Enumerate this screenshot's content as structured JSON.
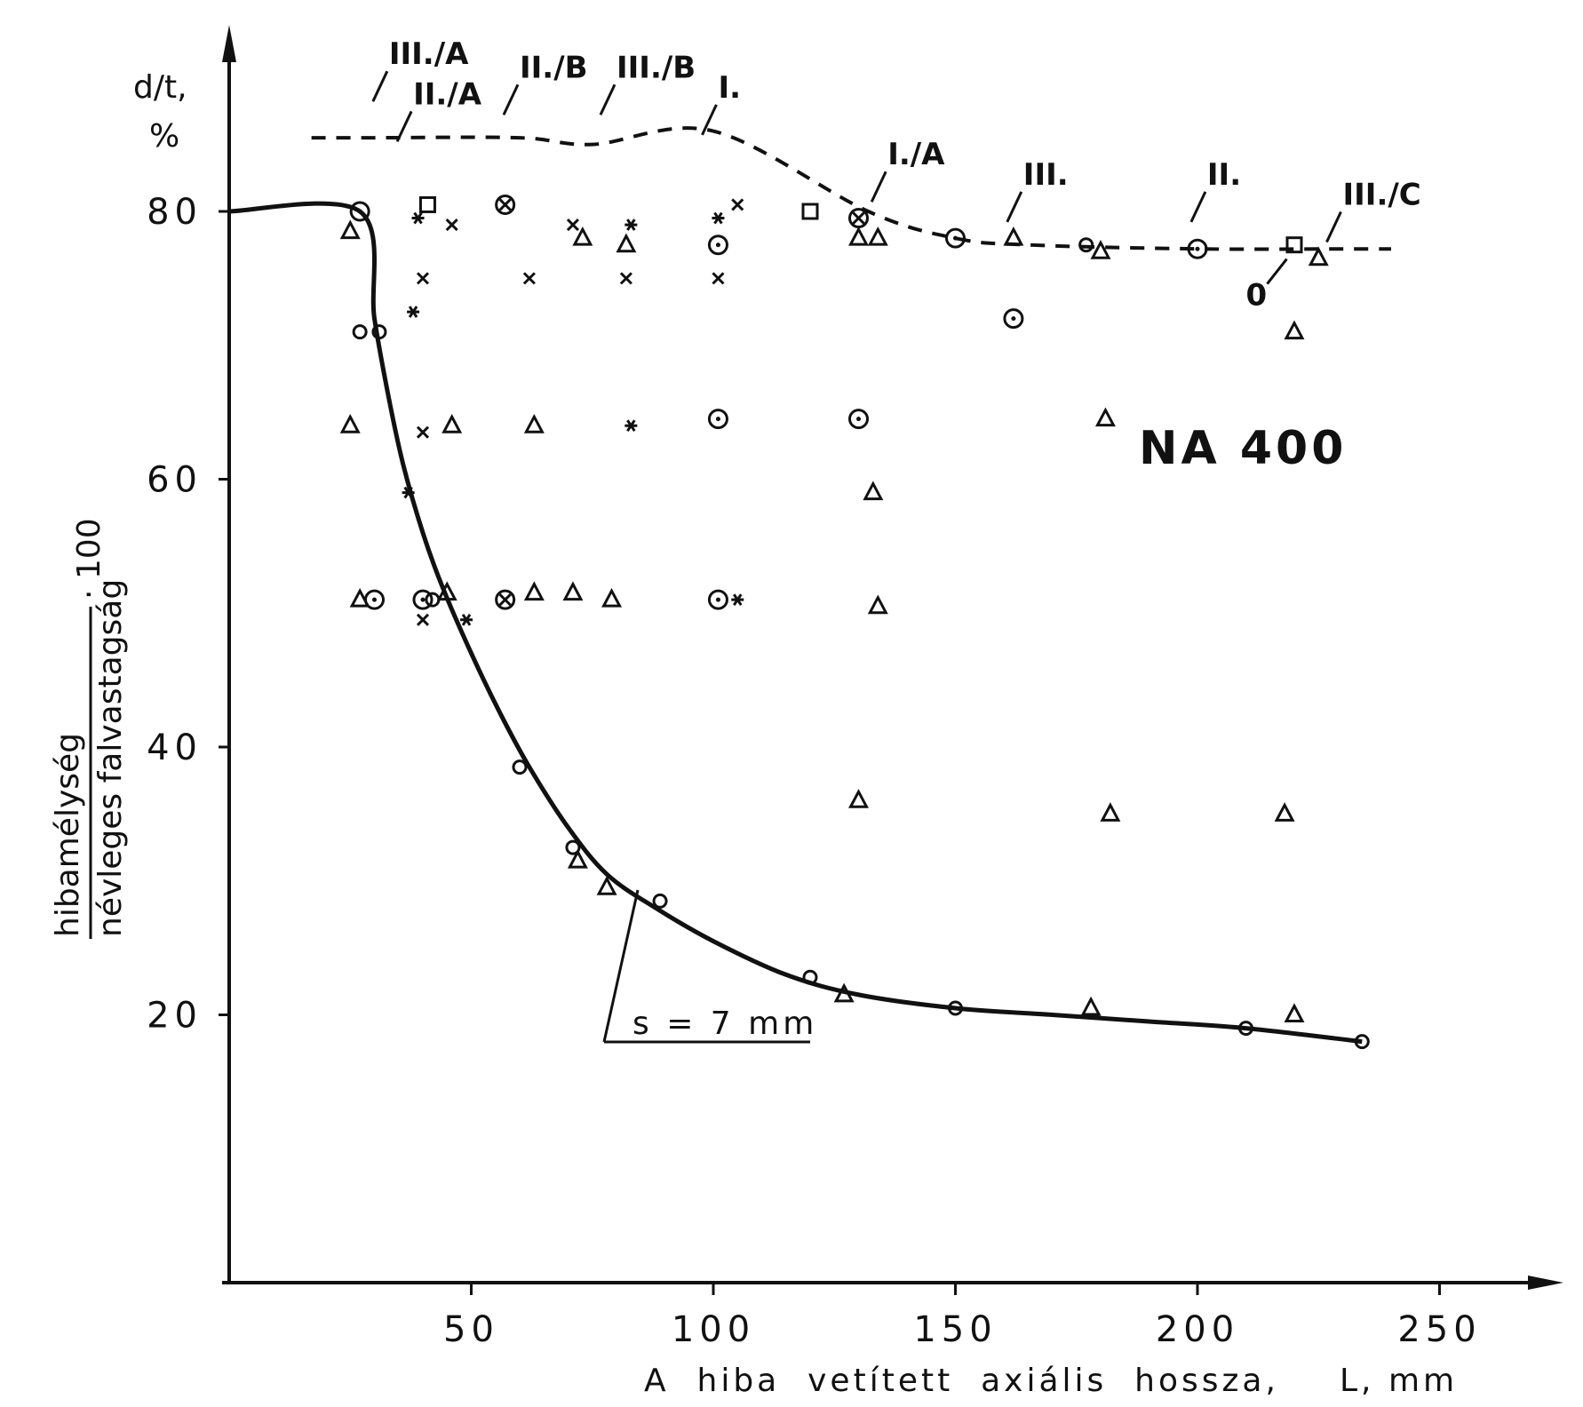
{
  "chart_data": {
    "type": "scatter",
    "annotation_label": "NA 400",
    "ylabel_top": "d/t,",
    "ylabel_unit": "%",
    "ylabel_numerator": "hibamélység",
    "ylabel_denominator": "névleges falvastagság",
    "ylabel_factor": "· 100",
    "xlabel_text": "A  hiba  vetített  axiális  hossza,",
    "xlabel_unit": "L, mm",
    "x_ticks": [
      50,
      100,
      150,
      200,
      250
    ],
    "y_ticks": [
      20,
      40,
      60,
      80
    ],
    "xlim": [
      0,
      270
    ],
    "ylim": [
      0,
      95
    ],
    "curve_label": "s = 7 mm",
    "series": [
      {
        "name": "s = 7 mm",
        "style": "solid",
        "x": [
          0,
          27,
          30,
          33,
          36,
          40,
          44,
          50,
          56,
          62,
          70,
          78,
          88,
          100,
          115,
          130,
          150,
          170,
          190,
          210,
          234
        ],
        "y": [
          80,
          80,
          72,
          66,
          61,
          56,
          52,
          47,
          42.5,
          38.5,
          34,
          30.5,
          28,
          25.5,
          23,
          21.5,
          20.5,
          20,
          19.5,
          19,
          18
        ]
      },
      {
        "style": "dashed",
        "x": [
          17,
          30,
          60,
          75,
          100,
          132,
          150,
          165,
          200,
          230,
          240
        ],
        "y": [
          85.5,
          85.5,
          85.5,
          85,
          86,
          80,
          78,
          77.5,
          77.2,
          77.2,
          77.2
        ]
      }
    ],
    "points": [
      {
        "m": "oc",
        "x": 27,
        "y": 80
      },
      {
        "m": "o",
        "x": 31,
        "y": 71
      },
      {
        "m": "o",
        "x": 60,
        "y": 38.5
      },
      {
        "m": "o",
        "x": 71,
        "y": 32.5
      },
      {
        "m": "o",
        "x": 89,
        "y": 28.5
      },
      {
        "m": "o",
        "x": 120,
        "y": 22.8
      },
      {
        "m": "o",
        "x": 150,
        "y": 20.5
      },
      {
        "m": "o",
        "x": 210,
        "y": 19
      },
      {
        "m": "o",
        "x": 234,
        "y": 18
      },
      {
        "m": "tri",
        "x": 25,
        "y": 78.5
      },
      {
        "m": "tri",
        "x": 25,
        "y": 64
      },
      {
        "m": "tri",
        "x": 27,
        "y": 51
      },
      {
        "m": "oc",
        "x": 30,
        "y": 51
      },
      {
        "m": "o",
        "x": 27,
        "y": 71
      },
      {
        "m": "sq",
        "x": 41,
        "y": 80.5
      },
      {
        "m": "ast",
        "x": 39,
        "y": 79.5
      },
      {
        "m": "x",
        "x": 46,
        "y": 79
      },
      {
        "m": "x",
        "x": 40,
        "y": 75
      },
      {
        "m": "ast",
        "x": 38,
        "y": 72.5
      },
      {
        "m": "x",
        "x": 40,
        "y": 63.5
      },
      {
        "m": "tri",
        "x": 46,
        "y": 64
      },
      {
        "m": "ast",
        "x": 37,
        "y": 59
      },
      {
        "m": "oc",
        "x": 40,
        "y": 51
      },
      {
        "m": "o",
        "x": 42,
        "y": 51
      },
      {
        "m": "tri",
        "x": 45,
        "y": 51.5
      },
      {
        "m": "x",
        "x": 40,
        "y": 49.5
      },
      {
        "m": "ast",
        "x": 49,
        "y": 49.5
      },
      {
        "m": "ox",
        "x": 57,
        "y": 80.5
      },
      {
        "m": "x",
        "x": 62,
        "y": 75
      },
      {
        "m": "tri",
        "x": 63,
        "y": 64
      },
      {
        "m": "ox",
        "x": 57,
        "y": 51
      },
      {
        "m": "tri",
        "x": 63,
        "y": 51.5
      },
      {
        "m": "x",
        "x": 71,
        "y": 79
      },
      {
        "m": "tri",
        "x": 73,
        "y": 78
      },
      {
        "m": "x",
        "x": 82,
        "y": 75
      },
      {
        "m": "ast",
        "x": 83,
        "y": 79
      },
      {
        "m": "tri",
        "x": 82,
        "y": 77.5
      },
      {
        "m": "ast",
        "x": 83,
        "y": 64
      },
      {
        "m": "tri",
        "x": 71,
        "y": 51.5
      },
      {
        "m": "tri",
        "x": 79,
        "y": 51
      },
      {
        "m": "tri",
        "x": 72,
        "y": 31.5
      },
      {
        "m": "tri",
        "x": 78,
        "y": 29.5
      },
      {
        "m": "oc",
        "x": 101,
        "y": 77.5
      },
      {
        "m": "ast",
        "x": 101,
        "y": 79.5
      },
      {
        "m": "x",
        "x": 105,
        "y": 80.5
      },
      {
        "m": "x",
        "x": 101,
        "y": 75
      },
      {
        "m": "oc",
        "x": 101,
        "y": 64.5
      },
      {
        "m": "oc",
        "x": 101,
        "y": 51
      },
      {
        "m": "ast",
        "x": 105,
        "y": 51
      },
      {
        "m": "sq",
        "x": 120,
        "y": 80
      },
      {
        "m": "ox",
        "x": 130,
        "y": 79.5
      },
      {
        "m": "tri",
        "x": 130,
        "y": 78
      },
      {
        "m": "tri",
        "x": 134,
        "y": 78
      },
      {
        "m": "oc",
        "x": 130,
        "y": 64.5
      },
      {
        "m": "tri",
        "x": 133,
        "y": 59
      },
      {
        "m": "tri",
        "x": 134,
        "y": 50.5
      },
      {
        "m": "tri",
        "x": 130,
        "y": 36
      },
      {
        "m": "tri",
        "x": 127,
        "y": 21.5
      },
      {
        "m": "oc",
        "x": 150,
        "y": 78
      },
      {
        "m": "oc",
        "x": 162,
        "y": 72
      },
      {
        "m": "tri",
        "x": 162,
        "y": 78
      },
      {
        "m": "o",
        "x": 177,
        "y": 77.5
      },
      {
        "m": "tri",
        "x": 180,
        "y": 77
      },
      {
        "m": "tri",
        "x": 181,
        "y": 64.5
      },
      {
        "m": "tri",
        "x": 182,
        "y": 35
      },
      {
        "m": "tri",
        "x": 178,
        "y": 20.5
      },
      {
        "m": "oc",
        "x": 200,
        "y": 77.2
      },
      {
        "m": "sq",
        "x": 220,
        "y": 77.5
      },
      {
        "m": "tri",
        "x": 225,
        "y": 76.5
      },
      {
        "m": "tri",
        "x": 220,
        "y": 71
      },
      {
        "m": "tri",
        "x": 218,
        "y": 35
      },
      {
        "m": "tri",
        "x": 220,
        "y": 20
      }
    ],
    "labels": [
      {
        "text": "III./A",
        "x": 33,
        "y": 91
      },
      {
        "text": "II./A",
        "x": 38,
        "y": 88
      },
      {
        "text": "II./B",
        "x": 60,
        "y": 90
      },
      {
        "text": "III./B",
        "x": 80,
        "y": 90
      },
      {
        "text": "I.",
        "x": 101,
        "y": 88.5
      },
      {
        "text": "I./A",
        "x": 136,
        "y": 83.5
      },
      {
        "text": "III.",
        "x": 164,
        "y": 82
      },
      {
        "text": "II.",
        "x": 202,
        "y": 82
      },
      {
        "text": "III./C",
        "x": 230,
        "y": 80.5
      },
      {
        "text": "0",
        "x": 210,
        "y": 73
      }
    ]
  }
}
